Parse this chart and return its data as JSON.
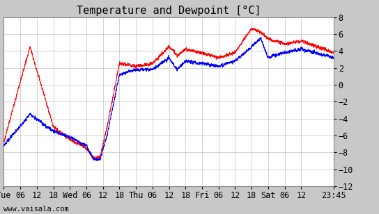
{
  "title": "Temperature and Dewpoint [°C]",
  "yticks": [
    -12,
    -10,
    -8,
    -6,
    -4,
    -2,
    0,
    2,
    4,
    6,
    8
  ],
  "ylim": [
    -12,
    8
  ],
  "xlabel_labels": [
    "Tue",
    "06",
    "12",
    "18",
    "Wed",
    "06",
    "12",
    "18",
    "Thu",
    "06",
    "12",
    "18",
    "Fri",
    "06",
    "12",
    "18",
    "Sat",
    "06",
    "12",
    "23:45"
  ],
  "plot_bg_color": "#ffffff",
  "fig_bg_color": "#c8c8c8",
  "grid_color": "#c0c0c0",
  "temp_color": "#ff0000",
  "dewpoint_color": "#0000ff",
  "watermark": "www.vaisala.com",
  "title_fontsize": 11,
  "tick_fontsize": 8.5,
  "watermark_fontsize": 7.5,
  "temp_ctrl_t": [
    0,
    570,
    1080,
    1440,
    1800,
    1950,
    2100,
    2250,
    2520,
    2880,
    3240,
    3600,
    3780,
    3960,
    4320,
    4680,
    5040,
    5400,
    5600,
    5760,
    6120,
    6480,
    7185
  ],
  "temp_ctrl_v": [
    -6.8,
    4.5,
    -5.0,
    -6.5,
    -7.5,
    -8.7,
    -8.5,
    -5.0,
    2.5,
    2.2,
    2.5,
    4.5,
    3.5,
    4.2,
    3.8,
    3.2,
    3.8,
    6.7,
    6.2,
    5.5,
    4.8,
    5.2,
    3.8
  ],
  "dew_ctrl_t": [
    0,
    570,
    1080,
    1440,
    1800,
    1950,
    2100,
    2250,
    2520,
    2880,
    3240,
    3600,
    3780,
    3960,
    4320,
    4680,
    5040,
    5400,
    5600,
    5760,
    6120,
    6480,
    7185
  ],
  "dew_ctrl_v": [
    -7.2,
    -3.5,
    -5.5,
    -6.2,
    -7.2,
    -8.8,
    -8.8,
    -6.0,
    1.2,
    1.8,
    1.8,
    3.2,
    1.8,
    2.8,
    2.5,
    2.2,
    2.8,
    4.5,
    5.5,
    3.2,
    3.8,
    4.2,
    3.2
  ]
}
